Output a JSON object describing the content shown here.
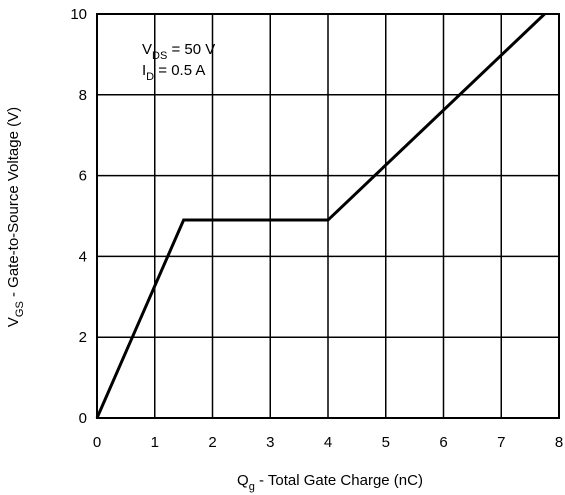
{
  "chart_data": {
    "type": "line",
    "xlabel": {
      "main": "Q",
      "sub": "g",
      "rest": " - Total Gate Charge (nC)"
    },
    "ylabel": {
      "main": "V",
      "sub": "GS",
      "rest": " - Gate-to-Source Voltage (V)"
    },
    "xlim": [
      0,
      8
    ],
    "ylim": [
      0,
      10
    ],
    "x_ticks": [
      0,
      1,
      2,
      3,
      4,
      5,
      6,
      7,
      8
    ],
    "y_ticks": [
      0,
      2,
      4,
      6,
      8,
      10
    ],
    "grid": true,
    "annotations": [
      {
        "main": "V",
        "sub": "DS",
        "rest": " = 50 V"
      },
      {
        "main": "I",
        "sub": "D",
        "rest": " = 0.5 A"
      }
    ],
    "series": [
      {
        "x": [
          0,
          1.5,
          4.0,
          7.75
        ],
        "y": [
          0,
          4.9,
          4.9,
          10
        ]
      }
    ]
  }
}
